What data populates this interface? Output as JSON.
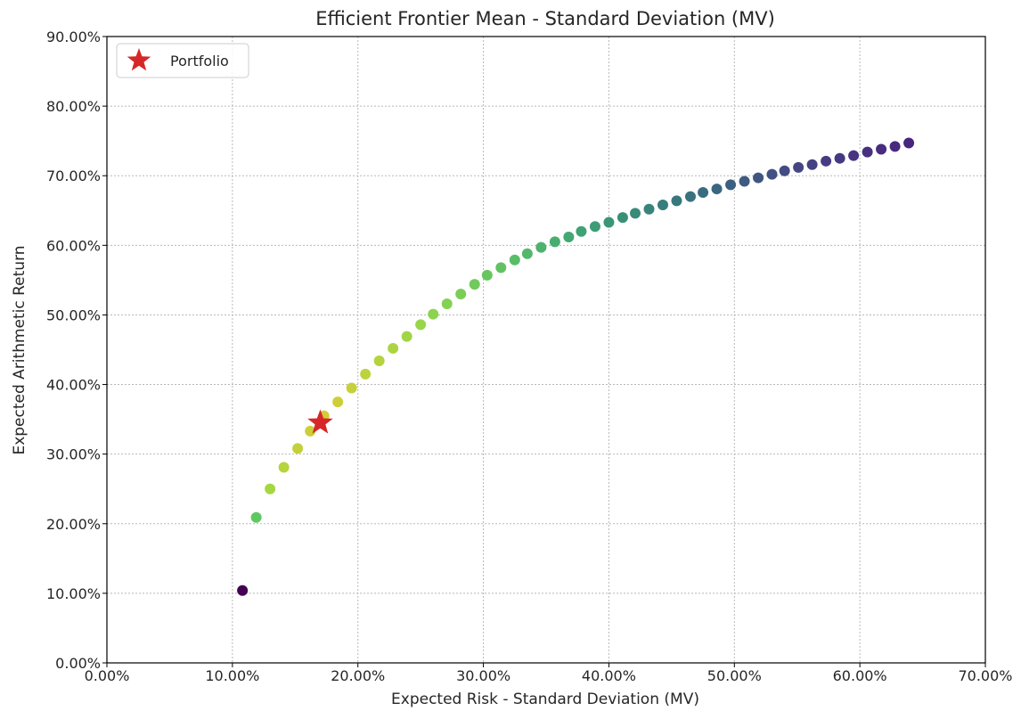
{
  "chart_data": {
    "type": "scatter",
    "title": "Efficient Frontier Mean - Standard Deviation (MV)",
    "xlabel": "Expected Risk - Standard Deviation (MV)",
    "ylabel": "Expected Arithmetic Return",
    "xlim": [
      0.0,
      0.7
    ],
    "ylim": [
      0.0,
      0.9
    ],
    "xticks": [
      0.0,
      0.1,
      0.2,
      0.3,
      0.4,
      0.5,
      0.6,
      0.7
    ],
    "yticks": [
      0.0,
      0.1,
      0.2,
      0.3,
      0.4,
      0.5,
      0.6,
      0.7,
      0.8,
      0.9
    ],
    "xtick_labels": [
      "0.00%",
      "10.00%",
      "20.00%",
      "30.00%",
      "40.00%",
      "50.00%",
      "60.00%",
      "70.00%"
    ],
    "ytick_labels": [
      "0.00%",
      "10.00%",
      "20.00%",
      "30.00%",
      "40.00%",
      "50.00%",
      "60.00%",
      "70.00%",
      "80.00%",
      "90.00%"
    ],
    "grid": true,
    "grid_style": "dotted",
    "legend_position": "top-left",
    "colormap": "viridis",
    "series": [
      {
        "name": "",
        "x": [
          0.108,
          0.119,
          0.13,
          0.141,
          0.152,
          0.162,
          0.173,
          0.184,
          0.195,
          0.206,
          0.217,
          0.228,
          0.239,
          0.25,
          0.26,
          0.271,
          0.282,
          0.293,
          0.303,
          0.314,
          0.325,
          0.335,
          0.346,
          0.357,
          0.368,
          0.378,
          0.389,
          0.4,
          0.411,
          0.421,
          0.432,
          0.443,
          0.454,
          0.465,
          0.475,
          0.486,
          0.497,
          0.508,
          0.519,
          0.53,
          0.54,
          0.551,
          0.562,
          0.573,
          0.584,
          0.595,
          0.606,
          0.617,
          0.628,
          0.639
        ],
        "y": [
          0.104,
          0.209,
          0.25,
          0.281,
          0.308,
          0.333,
          0.355,
          0.375,
          0.395,
          0.415,
          0.434,
          0.452,
          0.469,
          0.486,
          0.501,
          0.516,
          0.53,
          0.544,
          0.557,
          0.568,
          0.579,
          0.588,
          0.597,
          0.605,
          0.612,
          0.62,
          0.627,
          0.633,
          0.64,
          0.646,
          0.652,
          0.658,
          0.664,
          0.67,
          0.676,
          0.681,
          0.687,
          0.692,
          0.697,
          0.702,
          0.707,
          0.712,
          0.716,
          0.721,
          0.725,
          0.729,
          0.734,
          0.738,
          0.742,
          0.747
        ],
        "colors": [
          "#440154",
          "#5ec962",
          "#a5d742",
          "#b6d43d",
          "#c2d13a",
          "#cccf38",
          "#d1ce37",
          "#cecf38",
          "#c6d03a",
          "#bed23c",
          "#b5d33e",
          "#abd442",
          "#a1d545",
          "#97d64a",
          "#8dd44e",
          "#83d252",
          "#7ace57",
          "#71ca5b",
          "#69c65f",
          "#60c263",
          "#59bd66",
          "#53b869",
          "#4db36c",
          "#48ae6f",
          "#43a872",
          "#3fa274",
          "#3d9c76",
          "#3b9577",
          "#3a8f79",
          "#398a7a",
          "#38847b",
          "#387e7c",
          "#38787d",
          "#39727e",
          "#3a6c7f",
          "#3b6680",
          "#3c6081",
          "#3e5b82",
          "#405582",
          "#425083",
          "#434b83",
          "#454683",
          "#464183",
          "#473c82",
          "#473882",
          "#483481",
          "#483080",
          "#482c7f",
          "#48297e",
          "#48267d"
        ]
      }
    ],
    "highlight": {
      "name": "Portfolio",
      "x": 0.17,
      "y": 0.345,
      "marker": "star",
      "color": "#d62728"
    }
  }
}
